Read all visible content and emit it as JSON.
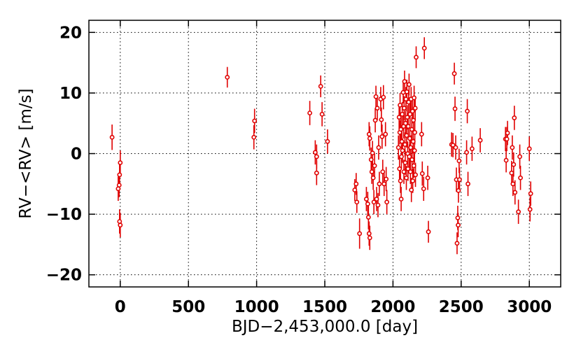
{
  "chart_data": {
    "type": "scatter",
    "xlabel": "BJD−2,453,000.0 [day]",
    "ylabel": "RV−<RV> [m/s]",
    "xlim": [
      -230,
      3230
    ],
    "ylim": [
      -22,
      22
    ],
    "x_ticks": [
      0,
      500,
      1000,
      1500,
      2000,
      2500,
      3000
    ],
    "x_tick_labels": [
      "0",
      "500",
      "1000",
      "1500",
      "2000",
      "2500",
      "3000"
    ],
    "y_ticks": [
      -20,
      -10,
      0,
      10,
      20
    ],
    "y_tick_labels": [
      "−20",
      "−10",
      "0",
      "10",
      "20"
    ],
    "grid": true,
    "marker_color": "#e00000",
    "points": [
      {
        "x": -60,
        "y": 2.7,
        "err": 2.1
      },
      {
        "x": -15,
        "y": -5.8,
        "err": 2.0
      },
      {
        "x": -8,
        "y": -5.2,
        "err": 2.0
      },
      {
        "x": -5,
        "y": -3.5,
        "err": 2.0
      },
      {
        "x": 0,
        "y": -1.5,
        "err": 2.0
      },
      {
        "x": -5,
        "y": -11.2,
        "err": 2.0
      },
      {
        "x": 0,
        "y": -11.8,
        "err": 2.0
      },
      {
        "x": 785,
        "y": 12.6,
        "err": 1.7
      },
      {
        "x": 980,
        "y": 2.7,
        "err": 2.0
      },
      {
        "x": 985,
        "y": 5.4,
        "err": 2.0
      },
      {
        "x": 1390,
        "y": 6.7,
        "err": 2.0
      },
      {
        "x": 1430,
        "y": 0.2,
        "err": 2.0
      },
      {
        "x": 1440,
        "y": -0.5,
        "err": 2.0
      },
      {
        "x": 1440,
        "y": -3.2,
        "err": 2.0
      },
      {
        "x": 1470,
        "y": 11.1,
        "err": 1.8
      },
      {
        "x": 1480,
        "y": 6.5,
        "err": 2.0
      },
      {
        "x": 1520,
        "y": 2.0,
        "err": 2.0
      },
      {
        "x": 1720,
        "y": -6.0,
        "err": 1.8
      },
      {
        "x": 1730,
        "y": -5.0,
        "err": 1.8
      },
      {
        "x": 1735,
        "y": -8.0,
        "err": 1.8
      },
      {
        "x": 1755,
        "y": -13.2,
        "err": 2.5
      },
      {
        "x": 1805,
        "y": -7.5,
        "err": 2.0
      },
      {
        "x": 1815,
        "y": -8.3,
        "err": 2.0
      },
      {
        "x": 1820,
        "y": -10.5,
        "err": 2.0
      },
      {
        "x": 1825,
        "y": -13.2,
        "err": 2.0
      },
      {
        "x": 1830,
        "y": -13.9,
        "err": 2.0
      },
      {
        "x": 1825,
        "y": 3.2,
        "err": 2.0
      },
      {
        "x": 1830,
        "y": 2.5,
        "err": 2.0
      },
      {
        "x": 1840,
        "y": -1.0,
        "err": 2.0
      },
      {
        "x": 1845,
        "y": -3.0,
        "err": 2.0
      },
      {
        "x": 1850,
        "y": 0.1,
        "err": 2.0
      },
      {
        "x": 1855,
        "y": -4.0,
        "err": 2.0
      },
      {
        "x": 1860,
        "y": -8.0,
        "err": 2.0
      },
      {
        "x": 1865,
        "y": -2.0,
        "err": 2.0
      },
      {
        "x": 1870,
        "y": 5.5,
        "err": 2.0
      },
      {
        "x": 1875,
        "y": 9.4,
        "err": 1.8
      },
      {
        "x": 1880,
        "y": -7.5,
        "err": 2.0
      },
      {
        "x": 1885,
        "y": 7.5,
        "err": 2.0
      },
      {
        "x": 1890,
        "y": -8.5,
        "err": 2.0
      },
      {
        "x": 1895,
        "y": 1.0,
        "err": 2.0
      },
      {
        "x": 1900,
        "y": -5.0,
        "err": 2.0
      },
      {
        "x": 1910,
        "y": 9.0,
        "err": 2.0
      },
      {
        "x": 1915,
        "y": 5.6,
        "err": 2.0
      },
      {
        "x": 1920,
        "y": 2.8,
        "err": 2.0
      },
      {
        "x": 1925,
        "y": -3.0,
        "err": 2.0
      },
      {
        "x": 1930,
        "y": 9.3,
        "err": 2.0
      },
      {
        "x": 1935,
        "y": -5.0,
        "err": 2.0
      },
      {
        "x": 1945,
        "y": 3.2,
        "err": 2.0
      },
      {
        "x": 1950,
        "y": -4.2,
        "err": 2.0
      },
      {
        "x": 1955,
        "y": -8.0,
        "err": 2.0
      },
      {
        "x": 2040,
        "y": 1.0,
        "err": 2.0
      },
      {
        "x": 2045,
        "y": 6.0,
        "err": 2.0
      },
      {
        "x": 2048,
        "y": -2.5,
        "err": 2.0
      },
      {
        "x": 2050,
        "y": 3.5,
        "err": 2.0
      },
      {
        "x": 2052,
        "y": 8.0,
        "err": 2.0
      },
      {
        "x": 2055,
        "y": -4.5,
        "err": 2.0
      },
      {
        "x": 2058,
        "y": 4.0,
        "err": 2.0
      },
      {
        "x": 2060,
        "y": -7.5,
        "err": 2.0
      },
      {
        "x": 2062,
        "y": -0.5,
        "err": 2.0
      },
      {
        "x": 2065,
        "y": 2.0,
        "err": 2.0
      },
      {
        "x": 2068,
        "y": 6.5,
        "err": 2.0
      },
      {
        "x": 2070,
        "y": 0.5,
        "err": 2.0
      },
      {
        "x": 2075,
        "y": 10.1,
        "err": 1.8
      },
      {
        "x": 2078,
        "y": 4.5,
        "err": 2.0
      },
      {
        "x": 2080,
        "y": -3.0,
        "err": 2.0
      },
      {
        "x": 2082,
        "y": 7.5,
        "err": 2.0
      },
      {
        "x": 2085,
        "y": 11.9,
        "err": 1.8
      },
      {
        "x": 2088,
        "y": 1.5,
        "err": 2.0
      },
      {
        "x": 2090,
        "y": -1.5,
        "err": 2.0
      },
      {
        "x": 2092,
        "y": 5.0,
        "err": 2.0
      },
      {
        "x": 2095,
        "y": 9.0,
        "err": 2.0
      },
      {
        "x": 2098,
        "y": -4.0,
        "err": 2.0
      },
      {
        "x": 2100,
        "y": 3.0,
        "err": 2.0
      },
      {
        "x": 2102,
        "y": 10.2,
        "err": 2.0
      },
      {
        "x": 2105,
        "y": 6.0,
        "err": 2.0
      },
      {
        "x": 2108,
        "y": 0.0,
        "err": 2.0
      },
      {
        "x": 2110,
        "y": -2.5,
        "err": 2.0
      },
      {
        "x": 2112,
        "y": 4.5,
        "err": 2.0
      },
      {
        "x": 2115,
        "y": 8.5,
        "err": 2.0
      },
      {
        "x": 2118,
        "y": 11.4,
        "err": 1.8
      },
      {
        "x": 2120,
        "y": -0.5,
        "err": 2.0
      },
      {
        "x": 2123,
        "y": 2.5,
        "err": 2.0
      },
      {
        "x": 2125,
        "y": 6.5,
        "err": 2.0
      },
      {
        "x": 2128,
        "y": -3.0,
        "err": 2.0
      },
      {
        "x": 2130,
        "y": 1.0,
        "err": 2.0
      },
      {
        "x": 2133,
        "y": 9.0,
        "err": 2.0
      },
      {
        "x": 2135,
        "y": -6.0,
        "err": 2.0
      },
      {
        "x": 2138,
        "y": 4.0,
        "err": 2.0
      },
      {
        "x": 2140,
        "y": -1.0,
        "err": 2.0
      },
      {
        "x": 2143,
        "y": 7.0,
        "err": 2.0
      },
      {
        "x": 2145,
        "y": -4.5,
        "err": 2.0
      },
      {
        "x": 2148,
        "y": 2.0,
        "err": 2.0
      },
      {
        "x": 2150,
        "y": 5.5,
        "err": 2.0
      },
      {
        "x": 2153,
        "y": -2.0,
        "err": 2.0
      },
      {
        "x": 2155,
        "y": 9.2,
        "err": 2.0
      },
      {
        "x": 2158,
        "y": 0.5,
        "err": 2.0
      },
      {
        "x": 2160,
        "y": 3.5,
        "err": 2.0
      },
      {
        "x": 2163,
        "y": 7.5,
        "err": 2.0
      },
      {
        "x": 2165,
        "y": -3.5,
        "err": 2.0
      },
      {
        "x": 2170,
        "y": 15.9,
        "err": 1.8
      },
      {
        "x": 2210,
        "y": 3.2,
        "err": 2.0
      },
      {
        "x": 2215,
        "y": -3.3,
        "err": 2.0
      },
      {
        "x": 2225,
        "y": -5.8,
        "err": 2.0
      },
      {
        "x": 2230,
        "y": 17.4,
        "err": 1.8
      },
      {
        "x": 2255,
        "y": -4.0,
        "err": 2.0
      },
      {
        "x": 2260,
        "y": -12.9,
        "err": 1.8
      },
      {
        "x": 2430,
        "y": 1.5,
        "err": 2.0
      },
      {
        "x": 2440,
        "y": 1.4,
        "err": 2.0
      },
      {
        "x": 2450,
        "y": 13.2,
        "err": 1.8
      },
      {
        "x": 2455,
        "y": 7.4,
        "err": 2.0
      },
      {
        "x": 2460,
        "y": 1.0,
        "err": 2.0
      },
      {
        "x": 2465,
        "y": -4.3,
        "err": 2.0
      },
      {
        "x": 2470,
        "y": -14.8,
        "err": 1.8
      },
      {
        "x": 2480,
        "y": -6.1,
        "err": 2.0
      },
      {
        "x": 2485,
        "y": -1.2,
        "err": 2.0
      },
      {
        "x": 2488,
        "y": -4.3,
        "err": 2.0
      },
      {
        "x": 2475,
        "y": -10.6,
        "err": 2.0
      },
      {
        "x": 2478,
        "y": -11.8,
        "err": 2.0
      },
      {
        "x": 2540,
        "y": 0.2,
        "err": 2.0
      },
      {
        "x": 2545,
        "y": 7.0,
        "err": 2.0
      },
      {
        "x": 2550,
        "y": -5.0,
        "err": 2.0
      },
      {
        "x": 2580,
        "y": 0.8,
        "err": 2.0
      },
      {
        "x": 2640,
        "y": 2.2,
        "err": 2.0
      },
      {
        "x": 2825,
        "y": 2.4,
        "err": 2.0
      },
      {
        "x": 2830,
        "y": -1.1,
        "err": 2.0
      },
      {
        "x": 2835,
        "y": 2.4,
        "err": 2.0
      },
      {
        "x": 2840,
        "y": 3.4,
        "err": 2.0
      },
      {
        "x": 2870,
        "y": -3.2,
        "err": 2.0
      },
      {
        "x": 2875,
        "y": 1.0,
        "err": 2.0
      },
      {
        "x": 2880,
        "y": -5.0,
        "err": 2.0
      },
      {
        "x": 2885,
        "y": -1.8,
        "err": 2.0
      },
      {
        "x": 2890,
        "y": 5.9,
        "err": 2.0
      },
      {
        "x": 2895,
        "y": -6.4,
        "err": 2.0
      },
      {
        "x": 2920,
        "y": -9.6,
        "err": 2.0
      },
      {
        "x": 2930,
        "y": -0.5,
        "err": 2.0
      },
      {
        "x": 2935,
        "y": -4.0,
        "err": 2.0
      },
      {
        "x": 3000,
        "y": 0.8,
        "err": 2.0
      },
      {
        "x": 3005,
        "y": -9.2,
        "err": 2.0
      },
      {
        "x": 3010,
        "y": -6.6,
        "err": 2.0
      }
    ]
  }
}
